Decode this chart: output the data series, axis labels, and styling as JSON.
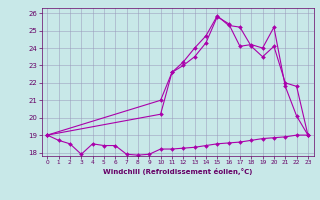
{
  "xlabel": "Windchill (Refroidissement éolien,°C)",
  "background_color": "#c8e8e8",
  "line_color": "#aa00aa",
  "xmin": -0.5,
  "xmax": 23.5,
  "ymin": 17.8,
  "ymax": 26.3,
  "yticks": [
    18,
    19,
    20,
    21,
    22,
    23,
    24,
    25,
    26
  ],
  "xticks": [
    0,
    1,
    2,
    3,
    4,
    5,
    6,
    7,
    8,
    9,
    10,
    11,
    12,
    13,
    14,
    15,
    16,
    17,
    18,
    19,
    20,
    21,
    22,
    23
  ],
  "line1_x": [
    0,
    1,
    2,
    3,
    4,
    5,
    6,
    7,
    8,
    9,
    10,
    11,
    12,
    13,
    14,
    15,
    16,
    17,
    18,
    19,
    20,
    21,
    22,
    23
  ],
  "line1_y": [
    19.0,
    18.7,
    18.5,
    17.9,
    18.5,
    18.4,
    18.4,
    17.9,
    17.85,
    17.9,
    18.2,
    18.2,
    18.25,
    18.3,
    18.4,
    18.5,
    18.55,
    18.6,
    18.7,
    18.8,
    18.85,
    18.9,
    19.0,
    19.0
  ],
  "line2_x": [
    0,
    10,
    11,
    12,
    13,
    14,
    15,
    16,
    17,
    18,
    19,
    20,
    21,
    22,
    23
  ],
  "line2_y": [
    19.0,
    20.2,
    22.6,
    23.0,
    23.5,
    24.3,
    25.8,
    25.4,
    24.1,
    24.2,
    24.0,
    25.2,
    21.8,
    20.1,
    19.0
  ],
  "line3_x": [
    0,
    10,
    11,
    12,
    13,
    14,
    15,
    16,
    17,
    18,
    19,
    20,
    21,
    22,
    23
  ],
  "line3_y": [
    19.0,
    21.0,
    22.6,
    23.2,
    24.0,
    24.7,
    25.85,
    25.3,
    25.2,
    24.1,
    23.5,
    24.1,
    22.0,
    21.8,
    19.0
  ]
}
